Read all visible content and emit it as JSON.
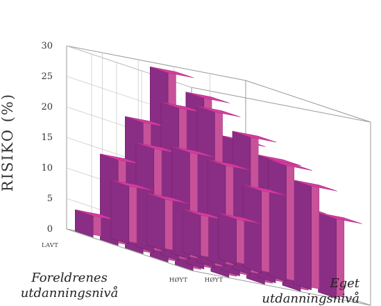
{
  "chart_data": {
    "type": "bar3d",
    "title": "",
    "ylabel": "RISIKO (%)",
    "yticks": [
      "0",
      "5",
      "10",
      "15",
      "20",
      "25",
      "30"
    ],
    "ylim": [
      0,
      30
    ],
    "x_axis": {
      "title": "Eget utdanningsnivå",
      "levels": [
        "HØYT",
        "",
        "",
        "",
        "LAVT"
      ]
    },
    "z_axis": {
      "title": "Foreldrenes utdanningsnivå",
      "levels": [
        "LAVT",
        "",
        "",
        "",
        "HØYT"
      ]
    },
    "grid": true,
    "colors": {
      "front": "#c8529a",
      "side": "#8a2d84",
      "top": "#d63ba0",
      "frame": "#999999"
    },
    "values": [
      [
        3.5,
        9.5,
        8.5,
        7.0,
        7.5
      ],
      [
        14.0,
        17.0,
        17.5,
        16.5,
        13.5
      ],
      [
        21.5,
        25.0,
        25.5,
        22.5,
        19.0
      ],
      [
        31.0,
        28.0,
        22.0,
        20.0,
        17.0
      ],
      [
        17.0,
        13.0,
        15.0,
        13.5,
        13.0
      ]
    ]
  }
}
